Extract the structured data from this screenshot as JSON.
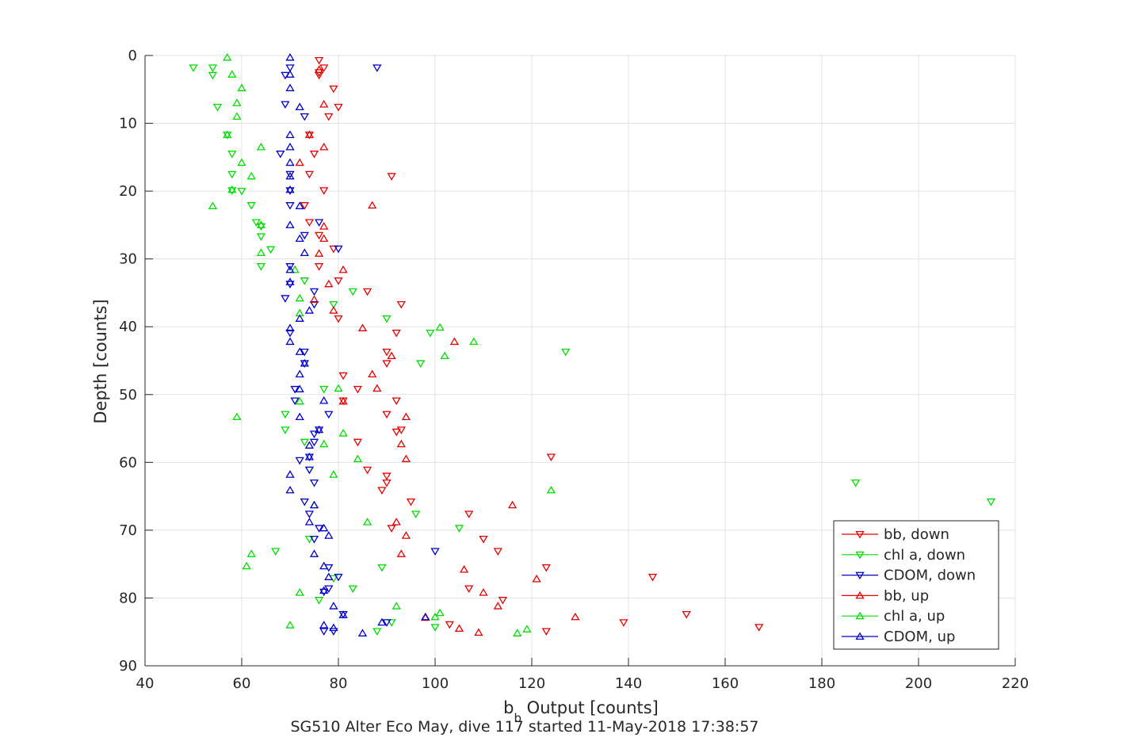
{
  "chart_data": {
    "type": "scatter",
    "title": "SG510 Alter Eco May, dive 117 started 11-May-2018 17:38:57",
    "xlabel_main": "b",
    "xlabel_sub": "b",
    "xlabel_rest": " Output [counts]",
    "ylabel": "Depth [counts]",
    "xlim": [
      40,
      220
    ],
    "ylim": [
      0,
      90
    ],
    "y_reversed": true,
    "x_ticks": [
      40,
      60,
      80,
      100,
      120,
      140,
      160,
      180,
      200,
      220
    ],
    "y_ticks": [
      0,
      10,
      20,
      30,
      40,
      50,
      60,
      70,
      80,
      90
    ],
    "grid": true,
    "legend_position": "bottom-right",
    "series": [
      {
        "name": "bb, down",
        "color": "#e60000",
        "marker": "triangle-down",
        "points": [
          [
            76,
            0.7
          ],
          [
            77,
            1.8
          ],
          [
            76,
            2.5
          ],
          [
            76,
            2.9
          ],
          [
            79,
            4.9
          ],
          [
            80,
            7.6
          ],
          [
            78,
            9.0
          ],
          [
            74,
            11.7
          ],
          [
            75,
            14.5
          ],
          [
            74,
            17.5
          ],
          [
            91,
            17.8
          ],
          [
            77,
            19.9
          ],
          [
            73,
            22.1
          ],
          [
            74,
            24.6
          ],
          [
            76,
            26.5
          ],
          [
            79,
            28.5
          ],
          [
            76,
            31.1
          ],
          [
            80,
            33.2
          ],
          [
            86,
            34.8
          ],
          [
            93,
            36.7
          ],
          [
            80,
            38.8
          ],
          [
            92,
            40.9
          ],
          [
            90,
            43.7
          ],
          [
            90,
            45.4
          ],
          [
            81,
            47.2
          ],
          [
            84,
            49.2
          ],
          [
            81,
            50.9
          ],
          [
            92,
            50.9
          ],
          [
            90,
            52.9
          ],
          [
            93,
            55.2
          ],
          [
            92,
            55.5
          ],
          [
            84,
            57.0
          ],
          [
            124,
            59.2
          ],
          [
            86,
            61.1
          ],
          [
            90,
            62.0
          ],
          [
            90,
            63.0
          ],
          [
            89,
            64.1
          ],
          [
            95,
            65.8
          ],
          [
            107,
            67.6
          ],
          [
            91,
            69.7
          ],
          [
            110,
            71.3
          ],
          [
            113,
            73.1
          ],
          [
            123,
            75.5
          ],
          [
            145,
            76.9
          ],
          [
            107,
            78.6
          ],
          [
            114,
            80.3
          ],
          [
            139,
            83.6
          ],
          [
            152,
            82.4
          ],
          [
            167,
            84.3
          ],
          [
            103,
            83.9
          ],
          [
            123,
            84.9
          ]
        ]
      },
      {
        "name": "chl a, down",
        "color": "#00dd00",
        "marker": "triangle-down",
        "points": [
          [
            50,
            1.8
          ],
          [
            54,
            1.8
          ],
          [
            54,
            2.9
          ],
          [
            55,
            7.6
          ],
          [
            57,
            11.7
          ],
          [
            58,
            14.5
          ],
          [
            58,
            17.5
          ],
          [
            58,
            19.9
          ],
          [
            60,
            20.0
          ],
          [
            62,
            22.1
          ],
          [
            63,
            24.6
          ],
          [
            64,
            25.2
          ],
          [
            64,
            26.7
          ],
          [
            66,
            28.6
          ],
          [
            64,
            31.1
          ],
          [
            73,
            33.2
          ],
          [
            83,
            34.8
          ],
          [
            79,
            36.7
          ],
          [
            90,
            38.8
          ],
          [
            99,
            40.9
          ],
          [
            127,
            43.7
          ],
          [
            97,
            45.4
          ],
          [
            77,
            49.2
          ],
          [
            69,
            52.9
          ],
          [
            69,
            55.2
          ],
          [
            73,
            57.0
          ],
          [
            74,
            61.1
          ],
          [
            187,
            63.0
          ],
          [
            215,
            65.8
          ],
          [
            96,
            67.6
          ],
          [
            105,
            69.7
          ],
          [
            74,
            71.3
          ],
          [
            67,
            73.1
          ],
          [
            89,
            75.5
          ],
          [
            79,
            77.1
          ],
          [
            83,
            78.6
          ],
          [
            76,
            80.3
          ],
          [
            91,
            83.6
          ],
          [
            100,
            84.3
          ],
          [
            88,
            84.9
          ]
        ]
      },
      {
        "name": "CDOM, down",
        "color": "#0000cc",
        "marker": "triangle-down",
        "points": [
          [
            70,
            1.8
          ],
          [
            69,
            2.9
          ],
          [
            88,
            1.8
          ],
          [
            69,
            7.2
          ],
          [
            73,
            9.0
          ],
          [
            68,
            14.5
          ],
          [
            70,
            17.5
          ],
          [
            70,
            19.9
          ],
          [
            70,
            22.1
          ],
          [
            76,
            24.6
          ],
          [
            73,
            26.5
          ],
          [
            80,
            28.5
          ],
          [
            70,
            31.1
          ],
          [
            70,
            33.7
          ],
          [
            75,
            34.8
          ],
          [
            69,
            35.8
          ],
          [
            75,
            36.7
          ],
          [
            70,
            40.9
          ],
          [
            73,
            43.7
          ],
          [
            73,
            45.4
          ],
          [
            71,
            49.2
          ],
          [
            71,
            50.9
          ],
          [
            78,
            52.9
          ],
          [
            76,
            55.2
          ],
          [
            75,
            55.8
          ],
          [
            75,
            57.0
          ],
          [
            74,
            59.2
          ],
          [
            72,
            59.7
          ],
          [
            74,
            61.1
          ],
          [
            75,
            63.0
          ],
          [
            73,
            65.8
          ],
          [
            74,
            67.6
          ],
          [
            76,
            69.7
          ],
          [
            75,
            71.3
          ],
          [
            100,
            73.1
          ],
          [
            78,
            75.5
          ],
          [
            80,
            76.9
          ],
          [
            78,
            78.6
          ],
          [
            77,
            79.1
          ],
          [
            81,
            82.4
          ],
          [
            90,
            83.6
          ],
          [
            79,
            84.9
          ],
          [
            77,
            84.9
          ]
        ]
      },
      {
        "name": "bb, up",
        "color": "#e60000",
        "marker": "triangle-up",
        "points": [
          [
            76,
            2.1
          ],
          [
            77,
            7.2
          ],
          [
            74,
            11.7
          ],
          [
            77,
            13.5
          ],
          [
            72,
            15.8
          ],
          [
            87,
            22.1
          ],
          [
            77,
            25.2
          ],
          [
            77,
            27.0
          ],
          [
            76,
            29.2
          ],
          [
            81,
            31.6
          ],
          [
            78,
            33.7
          ],
          [
            75,
            36.0
          ],
          [
            79,
            37.6
          ],
          [
            85,
            40.2
          ],
          [
            104,
            42.2
          ],
          [
            91,
            44.3
          ],
          [
            87,
            47.0
          ],
          [
            88,
            49.1
          ],
          [
            81,
            51.0
          ],
          [
            94,
            53.3
          ],
          [
            93,
            57.3
          ],
          [
            94,
            59.5
          ],
          [
            116,
            66.3
          ],
          [
            92,
            68.8
          ],
          [
            94,
            70.8
          ],
          [
            93,
            73.5
          ],
          [
            106,
            75.8
          ],
          [
            121,
            77.2
          ],
          [
            110,
            79.2
          ],
          [
            113,
            81.2
          ],
          [
            129,
            82.8
          ],
          [
            98,
            82.9
          ],
          [
            105,
            84.5
          ],
          [
            109,
            85.1
          ]
        ]
      },
      {
        "name": "chl a, up",
        "color": "#00dd00",
        "marker": "triangle-up",
        "points": [
          [
            57,
            0.3
          ],
          [
            58,
            2.8
          ],
          [
            60,
            4.8
          ],
          [
            59,
            7.0
          ],
          [
            59,
            9.0
          ],
          [
            57,
            11.7
          ],
          [
            64,
            13.5
          ],
          [
            60,
            15.8
          ],
          [
            62,
            17.8
          ],
          [
            58,
            19.8
          ],
          [
            54,
            22.2
          ],
          [
            64,
            25.0
          ],
          [
            64,
            29.1
          ],
          [
            71,
            31.6
          ],
          [
            72,
            35.8
          ],
          [
            72,
            38.0
          ],
          [
            101,
            40.1
          ],
          [
            108,
            42.2
          ],
          [
            102,
            44.3
          ],
          [
            80,
            49.1
          ],
          [
            72,
            51.0
          ],
          [
            59,
            53.3
          ],
          [
            81,
            55.7
          ],
          [
            77,
            57.3
          ],
          [
            84,
            59.5
          ],
          [
            79,
            61.8
          ],
          [
            124,
            64.1
          ],
          [
            75,
            66.3
          ],
          [
            86,
            68.8
          ],
          [
            62,
            73.5
          ],
          [
            61,
            75.3
          ],
          [
            72,
            79.2
          ],
          [
            92,
            81.2
          ],
          [
            101,
            82.2
          ],
          [
            100,
            82.8
          ],
          [
            70,
            84.0
          ],
          [
            119,
            84.6
          ],
          [
            117,
            85.2
          ]
        ]
      },
      {
        "name": "CDOM, up",
        "color": "#0000cc",
        "marker": "triangle-up",
        "points": [
          [
            70,
            0.3
          ],
          [
            70,
            2.8
          ],
          [
            70,
            4.8
          ],
          [
            72,
            7.6
          ],
          [
            70,
            11.7
          ],
          [
            70,
            13.5
          ],
          [
            70,
            15.8
          ],
          [
            70,
            17.8
          ],
          [
            70,
            19.8
          ],
          [
            72,
            22.2
          ],
          [
            70,
            25.0
          ],
          [
            72,
            27.0
          ],
          [
            73,
            29.1
          ],
          [
            70,
            31.6
          ],
          [
            70,
            33.4
          ],
          [
            74,
            37.6
          ],
          [
            72,
            38.8
          ],
          [
            70,
            40.2
          ],
          [
            70,
            42.2
          ],
          [
            72,
            43.7
          ],
          [
            73,
            45.4
          ],
          [
            72,
            47.0
          ],
          [
            72,
            49.2
          ],
          [
            77,
            50.9
          ],
          [
            72,
            53.3
          ],
          [
            76,
            55.2
          ],
          [
            74,
            57.5
          ],
          [
            74,
            59.2
          ],
          [
            70,
            61.8
          ],
          [
            70,
            64.1
          ],
          [
            75,
            66.3
          ],
          [
            74,
            68.8
          ],
          [
            77,
            69.7
          ],
          [
            78,
            70.8
          ],
          [
            75,
            73.5
          ],
          [
            77,
            75.3
          ],
          [
            78,
            76.9
          ],
          [
            77,
            78.9
          ],
          [
            79,
            81.2
          ],
          [
            81,
            82.5
          ],
          [
            98,
            82.8
          ],
          [
            89,
            83.6
          ],
          [
            77,
            84.0
          ],
          [
            79,
            84.4
          ],
          [
            85,
            85.2
          ]
        ]
      }
    ]
  }
}
